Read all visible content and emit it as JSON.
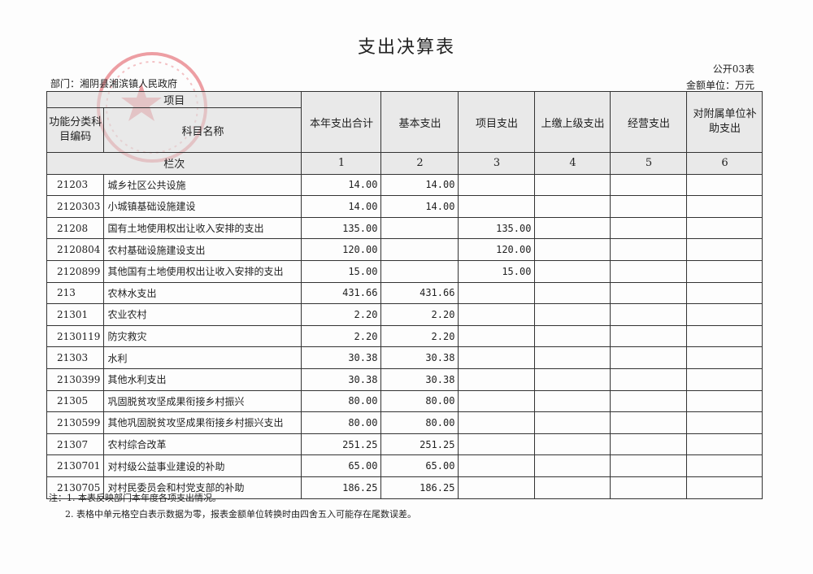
{
  "title": "支出决算表",
  "form_code": "公开03表",
  "unit": "金额单位：万元",
  "department": "部门：湘阴县湘滨镇人民政府",
  "seal_text": "湘阴县湘滨镇人民政府",
  "header": {
    "item": "项目",
    "code": "功能分类科目编码",
    "name": "科目名称",
    "cols": [
      "本年支出合计",
      "基本支出",
      "项目支出",
      "上缴上级支出",
      "经营支出",
      "对附属单位补助支出"
    ],
    "row_label": "栏次",
    "col_numbers": [
      "1",
      "2",
      "3",
      "4",
      "5",
      "6"
    ]
  },
  "rows": [
    {
      "code": "21203",
      "name": "城乡社区公共设施",
      "v": [
        "14.00",
        "14.00",
        "",
        "",
        "",
        ""
      ]
    },
    {
      "code": "2120303",
      "name": "小城镇基础设施建设",
      "v": [
        "14.00",
        "14.00",
        "",
        "",
        "",
        ""
      ]
    },
    {
      "code": "21208",
      "name": "国有土地使用权出让收入安排的支出",
      "v": [
        "135.00",
        "",
        "135.00",
        "",
        "",
        ""
      ]
    },
    {
      "code": "2120804",
      "name": "农村基础设施建设支出",
      "v": [
        "120.00",
        "",
        "120.00",
        "",
        "",
        ""
      ]
    },
    {
      "code": "2120899",
      "name": "其他国有土地使用权出让收入安排的支出",
      "v": [
        "15.00",
        "",
        "15.00",
        "",
        "",
        ""
      ]
    },
    {
      "code": "213",
      "name": "农林水支出",
      "v": [
        "431.66",
        "431.66",
        "",
        "",
        "",
        ""
      ]
    },
    {
      "code": "21301",
      "name": "农业农村",
      "v": [
        "2.20",
        "2.20",
        "",
        "",
        "",
        ""
      ]
    },
    {
      "code": "2130119",
      "name": "防灾救灾",
      "v": [
        "2.20",
        "2.20",
        "",
        "",
        "",
        ""
      ]
    },
    {
      "code": "21303",
      "name": "水利",
      "v": [
        "30.38",
        "30.38",
        "",
        "",
        "",
        ""
      ]
    },
    {
      "code": "2130399",
      "name": "其他水利支出",
      "v": [
        "30.38",
        "30.38",
        "",
        "",
        "",
        ""
      ]
    },
    {
      "code": "21305",
      "name": "巩固脱贫攻坚成果衔接乡村振兴",
      "v": [
        "80.00",
        "80.00",
        "",
        "",
        "",
        ""
      ]
    },
    {
      "code": "2130599",
      "name": "其他巩固脱贫攻坚成果衔接乡村振兴支出",
      "v": [
        "80.00",
        "80.00",
        "",
        "",
        "",
        ""
      ]
    },
    {
      "code": "21307",
      "name": "农村综合改革",
      "v": [
        "251.25",
        "251.25",
        "",
        "",
        "",
        ""
      ]
    },
    {
      "code": "2130701",
      "name": "对村级公益事业建设的补助",
      "v": [
        "65.00",
        "65.00",
        "",
        "",
        "",
        ""
      ]
    },
    {
      "code": "2130705",
      "name": "对村民委员会和村党支部的补助",
      "v": [
        "186.25",
        "186.25",
        "",
        "",
        "",
        ""
      ]
    }
  ],
  "notes": [
    "注：1. 本表反映部门本年度各项支出情况。",
    "2. 表格中单元格空白表示数据为零，报表金额单位转换时由四舍五入可能存在尾数误差。"
  ],
  "colors": {
    "seal": "#e0505a",
    "header_bg": "#e6e6e6"
  }
}
